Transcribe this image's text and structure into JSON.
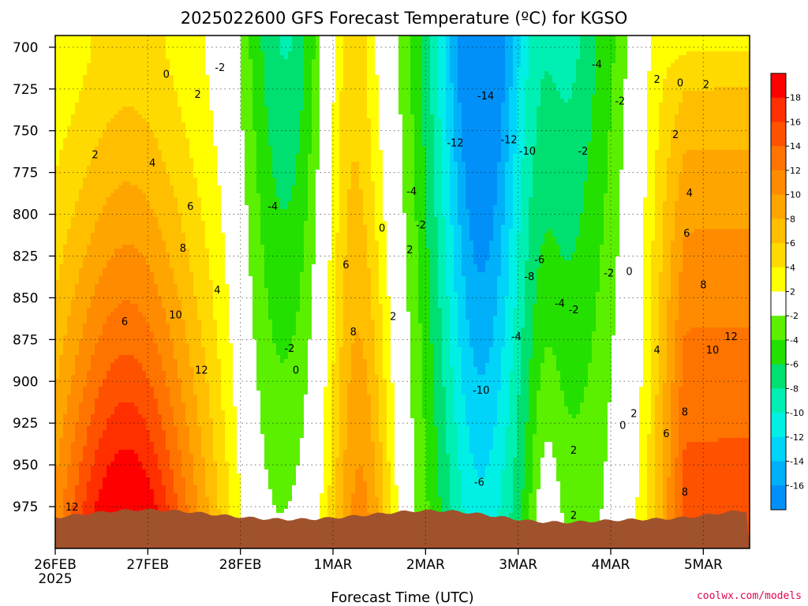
{
  "chart_data": {
    "type": "heatmap",
    "title": "2025022600 GFS Forecast Temperature (ºC) for KGSO",
    "xlabel": "Forecast Time (UTC)",
    "ylabel": "",
    "x_ticks": [
      "26FEB",
      "27FEB",
      "28FEB",
      "1MAR",
      "2MAR",
      "3MAR",
      "4MAR",
      "5MAR"
    ],
    "x_year_label": "2025",
    "x_range_days": [
      0,
      7.5
    ],
    "y_ticks": [
      700,
      725,
      750,
      775,
      800,
      825,
      850,
      875,
      900,
      925,
      950,
      975
    ],
    "y_range_hpa": [
      693,
      1000
    ],
    "y_scale": "pressure, decreasing upward",
    "grid": true,
    "credit": "coolwx.com/models",
    "contour_interval": 2,
    "legend": {
      "placement": "right",
      "labels": [
        "18",
        "16",
        "14",
        "12",
        "10",
        "8",
        "6",
        "4",
        "2",
        "-2",
        "-4",
        "-6",
        "-8",
        "-10",
        "-12",
        "-14",
        "-16"
      ],
      "bins": [
        {
          "min": 18,
          "max": 20,
          "color": "#ff0000"
        },
        {
          "min": 16,
          "max": 18,
          "color": "#ff2f00"
        },
        {
          "min": 14,
          "max": 16,
          "color": "#ff5200"
        },
        {
          "min": 12,
          "max": 14,
          "color": "#ff7400"
        },
        {
          "min": 10,
          "max": 12,
          "color": "#ff8c00"
        },
        {
          "min": 8,
          "max": 10,
          "color": "#ffa500"
        },
        {
          "min": 6,
          "max": 8,
          "color": "#ffbe00"
        },
        {
          "min": 4,
          "max": 6,
          "color": "#ffda00"
        },
        {
          "min": 2,
          "max": 4,
          "color": "#ffff00"
        },
        {
          "min": -2,
          "max": 2,
          "color": "#ffffff"
        },
        {
          "min": -4,
          "max": -2,
          "color": "#5af000"
        },
        {
          "min": -6,
          "max": -4,
          "color": "#24e000"
        },
        {
          "min": -8,
          "max": -6,
          "color": "#00e070"
        },
        {
          "min": -10,
          "max": -8,
          "color": "#00f0b4"
        },
        {
          "min": -12,
          "max": -10,
          "color": "#00f0e6"
        },
        {
          "min": -14,
          "max": -12,
          "color": "#00d4f8"
        },
        {
          "min": -16,
          "max": -14,
          "color": "#00b0f8"
        },
        {
          "min": -18,
          "max": -16,
          "color": "#0090f8"
        }
      ]
    },
    "terrain_color": "#a0522d",
    "contour_labels": [
      {
        "text": "0",
        "day": 1.2,
        "p": 716
      },
      {
        "text": "2",
        "day": 1.54,
        "p": 728
      },
      {
        "text": "-2",
        "day": 1.78,
        "p": 712
      },
      {
        "text": "2",
        "day": 0.43,
        "p": 764
      },
      {
        "text": "4",
        "day": 1.05,
        "p": 769
      },
      {
        "text": "6",
        "day": 1.46,
        "p": 795
      },
      {
        "text": "8",
        "day": 1.38,
        "p": 820
      },
      {
        "text": "4",
        "day": 1.75,
        "p": 845
      },
      {
        "text": "10",
        "day": 1.3,
        "p": 860
      },
      {
        "text": "6",
        "day": 0.75,
        "p": 864
      },
      {
        "text": "12",
        "day": 1.58,
        "p": 893
      },
      {
        "text": "12",
        "day": 0.18,
        "p": 975
      },
      {
        "text": "-4",
        "day": 2.35,
        "p": 795
      },
      {
        "text": "-2",
        "day": 2.53,
        "p": 880
      },
      {
        "text": "0",
        "day": 2.6,
        "p": 893
      },
      {
        "text": "6",
        "day": 3.14,
        "p": 830
      },
      {
        "text": "0",
        "day": 3.53,
        "p": 808
      },
      {
        "text": "2",
        "day": 3.83,
        "p": 821
      },
      {
        "text": "2",
        "day": 3.65,
        "p": 861
      },
      {
        "text": "8",
        "day": 3.22,
        "p": 870
      },
      {
        "text": "-4",
        "day": 3.85,
        "p": 786
      },
      {
        "text": "-2",
        "day": 3.95,
        "p": 806
      },
      {
        "text": "-12",
        "day": 4.32,
        "p": 757
      },
      {
        "text": "-14",
        "day": 4.65,
        "p": 729
      },
      {
        "text": "-12",
        "day": 4.9,
        "p": 755
      },
      {
        "text": "-10",
        "day": 5.1,
        "p": 762
      },
      {
        "text": "-6",
        "day": 5.23,
        "p": 827
      },
      {
        "text": "-8",
        "day": 5.12,
        "p": 837
      },
      {
        "text": "-4",
        "day": 5.45,
        "p": 853
      },
      {
        "text": "-2",
        "day": 5.6,
        "p": 857
      },
      {
        "text": "-2",
        "day": 5.7,
        "p": 762
      },
      {
        "text": "-4",
        "day": 4.98,
        "p": 873
      },
      {
        "text": "-10",
        "day": 4.6,
        "p": 905
      },
      {
        "text": "-6",
        "day": 4.58,
        "p": 960
      },
      {
        "text": "2",
        "day": 5.6,
        "p": 941
      },
      {
        "text": "-4",
        "day": 5.85,
        "p": 710
      },
      {
        "text": "-2",
        "day": 6.1,
        "p": 732
      },
      {
        "text": "-2",
        "day": 5.98,
        "p": 835
      },
      {
        "text": "0",
        "day": 6.2,
        "p": 834
      },
      {
        "text": "2",
        "day": 6.5,
        "p": 719
      },
      {
        "text": "0",
        "day": 6.75,
        "p": 721
      },
      {
        "text": "2",
        "day": 6.7,
        "p": 752
      },
      {
        "text": "2",
        "day": 7.03,
        "p": 722
      },
      {
        "text": "4",
        "day": 6.85,
        "p": 787
      },
      {
        "text": "6",
        "day": 6.82,
        "p": 811
      },
      {
        "text": "8",
        "day": 7.0,
        "p": 842
      },
      {
        "text": "12",
        "day": 7.3,
        "p": 873
      },
      {
        "text": "10",
        "day": 7.1,
        "p": 881
      },
      {
        "text": "4",
        "day": 6.5,
        "p": 881
      },
      {
        "text": "8",
        "day": 6.8,
        "p": 918
      },
      {
        "text": "6",
        "day": 6.6,
        "p": 931
      },
      {
        "text": "2",
        "day": 6.25,
        "p": 919
      },
      {
        "text": "0",
        "day": 6.13,
        "p": 926
      },
      {
        "text": "8",
        "day": 6.8,
        "p": 966
      },
      {
        "text": "2",
        "day": 5.6,
        "p": 980
      }
    ]
  }
}
